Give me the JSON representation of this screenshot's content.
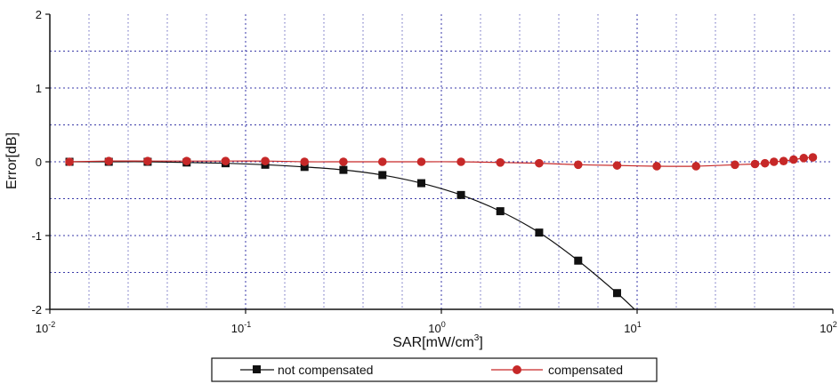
{
  "chart_data": {
    "type": "line",
    "xscale": "log",
    "xlabel": "SAR[mW/cm",
    "xlabel_sup": "3",
    "xlabel_tail": "]",
    "ylabel": "Error[dB]",
    "xlim": [
      0.01,
      100
    ],
    "ylim": [
      -2,
      2
    ],
    "grid": true,
    "legend_position": "bottom",
    "x_ticks": [
      {
        "value": 0.01,
        "base": "10",
        "exp": "-2"
      },
      {
        "value": 0.1,
        "base": "10",
        "exp": "-1"
      },
      {
        "value": 1,
        "base": "10",
        "exp": "0"
      },
      {
        "value": 10,
        "base": "10",
        "exp": "1"
      },
      {
        "value": 100,
        "base": "10",
        "exp": "2"
      }
    ],
    "y_ticks": [
      {
        "value": 2,
        "label": "2"
      },
      {
        "value": 1,
        "label": "1"
      },
      {
        "value": 0,
        "label": "0"
      },
      {
        "value": -1,
        "label": "-1"
      },
      {
        "value": -2,
        "label": "-2"
      }
    ],
    "series": [
      {
        "name": "not compensated",
        "color": "#111111",
        "marker": "square",
        "x": [
          0.0126,
          0.02,
          0.0316,
          0.05,
          0.079,
          0.126,
          0.2,
          0.316,
          0.5,
          0.79,
          1.26,
          2.0,
          3.16,
          5.0,
          7.9
        ],
        "y": [
          0.0,
          0.0,
          0.0,
          -0.01,
          -0.02,
          -0.04,
          -0.07,
          -0.11,
          -0.18,
          -0.29,
          -0.45,
          -0.67,
          -0.96,
          -1.34,
          -1.78
        ],
        "line_end": {
          "x": 9.7,
          "y": -2.0
        }
      },
      {
        "name": "compensated",
        "color": "#c62828",
        "marker": "circle",
        "x": [
          0.0126,
          0.02,
          0.0316,
          0.05,
          0.079,
          0.126,
          0.2,
          0.316,
          0.5,
          0.79,
          1.26,
          2.0,
          3.16,
          5.0,
          7.9,
          12.6,
          20.0,
          31.6,
          40.0,
          45.0,
          50.0,
          56.0,
          63.0,
          71.0,
          79.0
        ],
        "y": [
          0.0,
          0.01,
          0.01,
          0.01,
          0.01,
          0.01,
          0.0,
          0.0,
          0.0,
          0.0,
          0.0,
          -0.01,
          -0.02,
          -0.04,
          -0.05,
          -0.06,
          -0.06,
          -0.04,
          -0.03,
          -0.02,
          0.0,
          0.01,
          0.03,
          0.05,
          0.06
        ]
      }
    ]
  }
}
